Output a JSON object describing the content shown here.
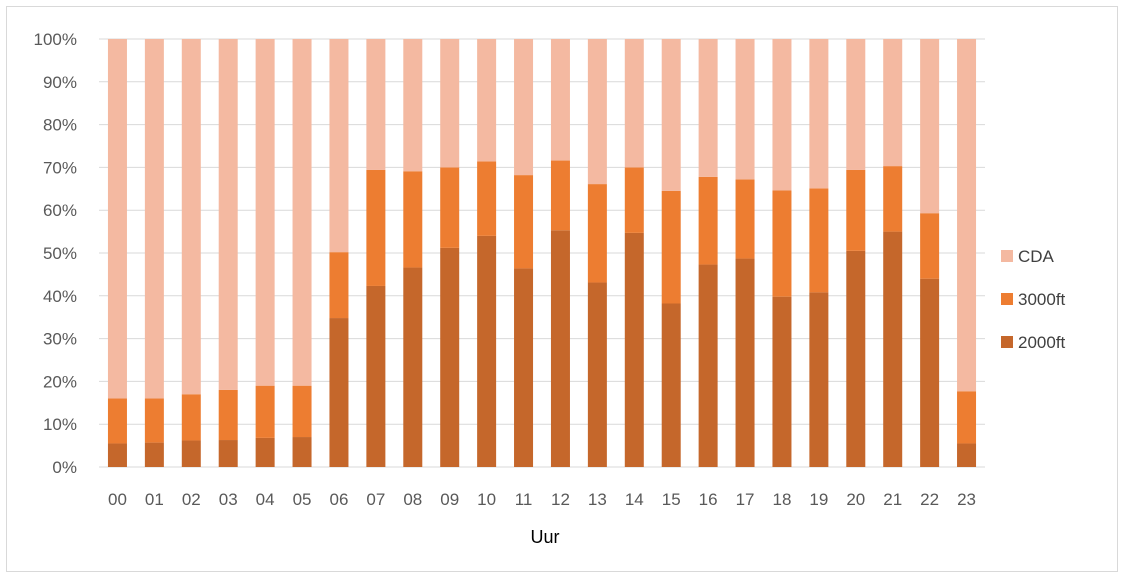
{
  "chart_data": {
    "type": "bar",
    "stacked": true,
    "percent_stacked": true,
    "xlabel": "Uur",
    "ylabel": "",
    "ylim": [
      0,
      100
    ],
    "yticks": [
      "0%",
      "10%",
      "20%",
      "30%",
      "40%",
      "50%",
      "60%",
      "70%",
      "80%",
      "90%",
      "100%"
    ],
    "grid": true,
    "legend_position": "right",
    "categories": [
      "00",
      "01",
      "02",
      "03",
      "04",
      "05",
      "06",
      "07",
      "08",
      "09",
      "10",
      "11",
      "12",
      "13",
      "14",
      "15",
      "16",
      "17",
      "18",
      "19",
      "20",
      "21",
      "22",
      "23"
    ],
    "series": [
      {
        "name": "2000ft",
        "color": "#c5672b",
        "values": [
          5.5,
          5.7,
          6.2,
          6.3,
          6.8,
          7.0,
          34.8,
          42.3,
          46.6,
          51.2,
          54.0,
          46.4,
          55.3,
          43.1,
          54.7,
          38.2,
          47.3,
          48.7,
          39.8,
          40.8,
          50.5,
          55.0,
          44.0,
          5.5
        ]
      },
      {
        "name": "3000ft",
        "color": "#ed7d31",
        "values": [
          10.5,
          10.3,
          10.8,
          11.7,
          12.2,
          12.0,
          15.4,
          27.1,
          22.5,
          18.8,
          17.4,
          21.8,
          16.3,
          23.0,
          15.3,
          26.3,
          20.5,
          18.5,
          24.8,
          24.3,
          18.9,
          15.3,
          15.3,
          12.2
        ]
      },
      {
        "name": "CDA",
        "color": "#f4b9a1",
        "values": [
          84.0,
          84.0,
          83.0,
          82.0,
          81.0,
          81.0,
          49.8,
          30.6,
          30.9,
          30.0,
          28.6,
          31.8,
          28.4,
          33.9,
          30.0,
          35.5,
          32.2,
          32.8,
          35.4,
          34.9,
          30.6,
          29.7,
          40.7,
          82.3
        ]
      }
    ]
  }
}
